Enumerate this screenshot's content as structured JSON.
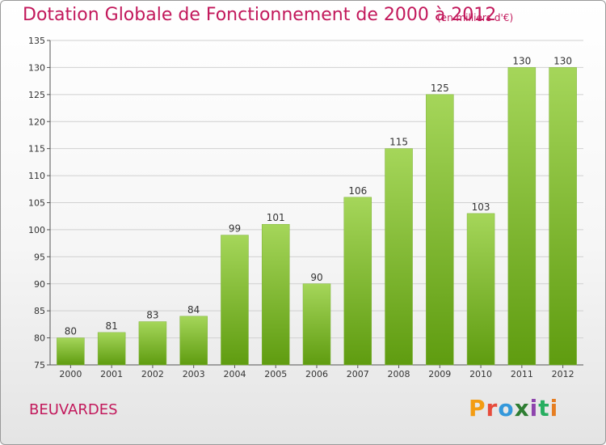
{
  "header": {
    "title": "Dotation Globale de Fonctionnement de 2000 à 2012",
    "subtitle": "(en milliers d'€)"
  },
  "footer": {
    "commune": "BEUVARDES",
    "logo_text": "Proxiti",
    "logo_colors": [
      "#f39c12",
      "#e74c3c",
      "#3498db",
      "#2e7d32",
      "#8e44ad",
      "#27ae60",
      "#e67e22"
    ]
  },
  "colors": {
    "accent": "#c2185b",
    "bar_top": "#a5d65a",
    "bar_bottom": "#5f9c10",
    "grid": "#d0d0d0"
  },
  "chart_data": {
    "type": "bar",
    "categories": [
      "2000",
      "2001",
      "2002",
      "2003",
      "2004",
      "2005",
      "2006",
      "2007",
      "2008",
      "2009",
      "2010",
      "2011",
      "2012"
    ],
    "values": [
      80,
      81,
      83,
      84,
      99,
      101,
      90,
      106,
      115,
      125,
      103,
      130,
      130
    ],
    "ylim": [
      75,
      135
    ],
    "yticks": [
      75,
      80,
      85,
      90,
      95,
      100,
      105,
      110,
      115,
      120,
      125,
      130,
      135
    ],
    "grid": true,
    "legend": "none"
  }
}
